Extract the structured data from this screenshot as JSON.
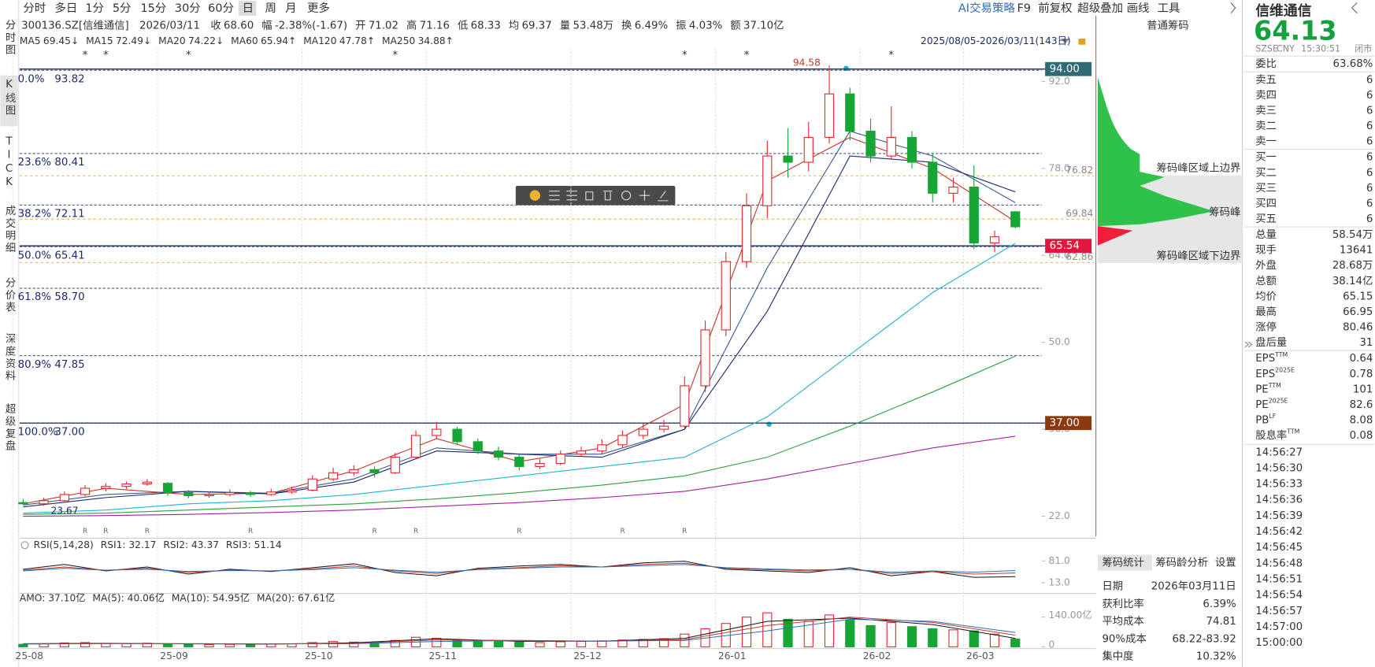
{
  "toolbar": {
    "periods": [
      "分时",
      "多日",
      "1分",
      "5分",
      "15分",
      "30分",
      "60分",
      "日",
      "周",
      "月",
      "更多"
    ],
    "active": 7,
    "right": [
      "AI交易策略",
      "F9",
      "前复权",
      "超级叠加",
      "画线",
      "工具"
    ]
  },
  "side_nav": [
    "分时图",
    "K线图",
    "TICK",
    "成交明细",
    "分价表",
    "深度资料",
    "超级复盘"
  ],
  "quote_line": {
    "code": "300136.SZ[信维通信]",
    "date": "2026/03/11",
    "items": [
      {
        "label": "收",
        "value": "68.60",
        "color": "#17a535"
      },
      {
        "label": "幅",
        "value": "-2.38%(-1.67)",
        "color": "#17a535"
      },
      {
        "label": "开",
        "value": "71.02",
        "color": "#e8262f"
      },
      {
        "label": "高",
        "value": "71.16",
        "color": "#e8262f"
      },
      {
        "label": "低",
        "value": "68.33",
        "color": "#17a535"
      },
      {
        "label": "均",
        "value": "69.37",
        "color": "#17a535"
      },
      {
        "label": "量",
        "value": "53.48万",
        "color": "#333333"
      },
      {
        "label": "换",
        "value": "6.49%",
        "color": "#333333"
      },
      {
        "label": "振",
        "value": "4.03%",
        "color": "#333333"
      },
      {
        "label": "额",
        "value": "37.10亿",
        "color": "#333333"
      }
    ]
  },
  "chip_panel": {
    "title": "普通筹码",
    "labels": [
      "筹码峰区域上边界",
      "筹码峰",
      "筹码峰区域下边界"
    ]
  },
  "chart_data": [
    {
      "type": "candlestick",
      "date_range": "2025/08/05-2026/03/11(143日)",
      "categories": [
        "25-08",
        null,
        null,
        null,
        null,
        null,
        null,
        "25-09",
        null,
        null,
        null,
        null,
        null,
        null,
        "25-10",
        null,
        null,
        null,
        null,
        null,
        "25-11",
        null,
        null,
        null,
        null,
        null,
        null,
        "25-12",
        null,
        null,
        null,
        null,
        null,
        null,
        "26-01",
        null,
        null,
        null,
        null,
        null,
        null,
        "26-02",
        null,
        null,
        null,
        null,
        "26-03",
        null,
        null
      ],
      "values": [
        [
          24.2,
          24.8,
          23.8,
          24.0
        ],
        [
          24.0,
          25.0,
          23.67,
          24.5
        ],
        [
          24.5,
          26.0,
          24.2,
          25.5
        ],
        [
          25.5,
          27.0,
          25.2,
          26.5
        ],
        [
          26.5,
          27.3,
          26.0,
          26.8
        ],
        [
          26.8,
          27.6,
          26.4,
          27.2
        ],
        [
          27.2,
          28.0,
          26.9,
          27.5
        ],
        [
          27.3,
          27.5,
          25.3,
          25.8
        ],
        [
          25.8,
          26.2,
          24.9,
          25.3
        ],
        [
          25.3,
          26.0,
          25.0,
          25.5
        ],
        [
          25.5,
          26.3,
          25.2,
          25.8
        ],
        [
          25.8,
          26.1,
          25.1,
          25.5
        ],
        [
          25.5,
          26.4,
          25.3,
          25.9
        ],
        [
          25.9,
          26.8,
          25.6,
          26.2
        ],
        [
          26.2,
          28.6,
          26.0,
          28.0
        ],
        [
          28.0,
          29.8,
          27.6,
          29.0
        ],
        [
          29.0,
          30.2,
          28.5,
          29.5
        ],
        [
          29.5,
          30.0,
          28.3,
          29.0
        ],
        [
          29.0,
          32.2,
          28.8,
          31.5
        ],
        [
          31.5,
          35.8,
          31.2,
          35.0
        ],
        [
          35.0,
          37.2,
          34.5,
          36.0
        ],
        [
          36.0,
          36.4,
          33.6,
          34.0
        ],
        [
          34.0,
          34.5,
          32.0,
          32.5
        ],
        [
          32.5,
          33.2,
          31.0,
          31.5
        ],
        [
          31.5,
          31.9,
          29.4,
          30.0
        ],
        [
          30.0,
          31.2,
          29.6,
          30.5
        ],
        [
          30.5,
          32.6,
          30.2,
          32.0
        ],
        [
          32.0,
          33.2,
          31.6,
          32.5
        ],
        [
          32.5,
          34.4,
          32.0,
          33.5
        ],
        [
          33.5,
          35.8,
          33.1,
          35.0
        ],
        [
          35.0,
          36.9,
          34.4,
          36.0
        ],
        [
          36.0,
          37.5,
          35.5,
          36.5
        ],
        [
          36.5,
          44.5,
          36.2,
          43.0
        ],
        [
          43.0,
          53.5,
          42.0,
          52.0
        ],
        [
          52.0,
          64.5,
          51.0,
          63.0
        ],
        [
          63.0,
          74.0,
          62.0,
          72.0
        ],
        [
          72.0,
          82.5,
          70.0,
          80.0
        ],
        [
          80.0,
          84.5,
          76.5,
          79.0
        ],
        [
          79.0,
          85.5,
          77.5,
          83.0
        ],
        [
          83.0,
          94.58,
          82.0,
          90.0
        ],
        [
          90.0,
          91.0,
          82.5,
          84.0
        ],
        [
          84.0,
          86.0,
          79.0,
          80.0
        ],
        [
          80.0,
          88.0,
          79.5,
          83.0
        ],
        [
          83.0,
          84.0,
          78.0,
          79.0
        ],
        [
          79.0,
          80.5,
          72.5,
          74.0
        ],
        [
          74.0,
          76.5,
          72.5,
          75.0
        ],
        [
          75.0,
          78.5,
          65.0,
          66.0
        ],
        [
          66.0,
          68.0,
          64.5,
          67.0
        ],
        [
          71.02,
          71.16,
          68.33,
          68.6
        ]
      ],
      "colors": {
        "up": "#e8262f",
        "down": "#17a535"
      },
      "ylim": [
        18.75,
        97.36
      ],
      "yticks": [
        {
          "value": 92,
          "label": "92.0"
        },
        {
          "value": 78,
          "label": "78.0"
        },
        {
          "value": 64,
          "label": "64.0"
        },
        {
          "value": 50,
          "label": "50.0"
        },
        {
          "value": 36,
          "label": "36.0"
        },
        {
          "value": 22,
          "label": "22.0"
        }
      ],
      "moving_averages": [
        {
          "name": "MA5",
          "label": "69.45↓",
          "color": "#c0392b",
          "values": [
            24,
            26.5,
            25.5,
            25.7,
            29.3,
            34.5,
            30.8,
            33,
            40,
            76,
            83,
            78,
            69.45
          ]
        },
        {
          "name": "MA15",
          "label": "72.49↓",
          "color": "#3a5b8c",
          "values": [
            23.8,
            25.5,
            26,
            25.7,
            28,
            33,
            32,
            32,
            36,
            62,
            84,
            80,
            72.49
          ]
        },
        {
          "name": "MA20",
          "label": "74.22↓",
          "color": "#1c2a6b",
          "values": [
            23.5,
            25,
            26,
            25.6,
            27.5,
            32.5,
            32,
            31.5,
            36,
            55,
            80,
            79,
            74.22
          ]
        },
        {
          "name": "MA60",
          "label": "65.94↑",
          "color": "#1fb3d1",
          "values": [
            22.5,
            23,
            24,
            24.5,
            25.5,
            27,
            28.5,
            30,
            31.5,
            38,
            48,
            58,
            65.94
          ]
        },
        {
          "name": "MA120",
          "label": "47.78↑",
          "color": "#2e9e3f",
          "values": [
            22.3,
            22.5,
            23,
            23.5,
            24,
            24.8,
            25.8,
            27,
            28.5,
            31.5,
            36.5,
            42,
            47.78
          ]
        },
        {
          "name": "MA250",
          "label": "34.88↑",
          "color": "#a020a0",
          "values": [
            22.0,
            22.1,
            22.3,
            22.6,
            23.0,
            23.6,
            24.2,
            25,
            26,
            28,
            30.5,
            33,
            34.88
          ]
        }
      ],
      "fib_levels": [
        {
          "pct": "0.0%",
          "price": 93.82
        },
        {
          "pct": "23.6%",
          "price": 80.41
        },
        {
          "pct": "38.2%",
          "price": 72.11
        },
        {
          "pct": "50.0%",
          "price": 65.41
        },
        {
          "pct": "61.8%",
          "price": {
            "value": 58.7,
            "label": "58.70"
          }
        },
        {
          "pct": "80.9%",
          "price": 47.85
        },
        {
          "pct": "100.0%",
          "price": {
            "value": 37,
            "label": "37.00"
          }
        }
      ],
      "price_tags": [
        {
          "value": 94,
          "label": "94.00",
          "color": "#2e6b73"
        },
        {
          "value": 65.54,
          "label": "65.54",
          "color": "#e0173c"
        },
        {
          "value": 37,
          "label": "37.00",
          "color": "#8b3a0f"
        }
      ],
      "chip_levels": [
        76.82,
        69.84,
        62.86
      ],
      "top_marks": [
        null,
        null,
        null,
        "*",
        "*",
        null,
        null,
        null,
        "*",
        null,
        null,
        null,
        null,
        null,
        null,
        null,
        null,
        null,
        "*",
        null,
        null,
        null,
        null,
        null,
        null,
        null,
        null,
        null,
        null,
        null,
        null,
        null,
        "*",
        null,
        null,
        "*",
        null,
        null,
        null,
        null,
        null,
        null,
        "*",
        null,
        null,
        null,
        null,
        null,
        null
      ],
      "bottom_marks": [
        null,
        null,
        null,
        "R",
        "R",
        null,
        "R",
        null,
        null,
        null,
        null,
        "R",
        null,
        null,
        null,
        null,
        null,
        "R",
        null,
        "R",
        null,
        null,
        null,
        null,
        "R",
        null,
        null,
        null,
        null,
        "R",
        null,
        null,
        "R",
        null,
        null,
        null,
        null,
        null,
        null,
        null,
        null,
        null,
        null,
        null,
        null,
        null,
        null,
        null,
        null
      ]
    },
    {
      "type": "line",
      "title": "RSI(5,14,28)",
      "ylim": [
        -17,
        108
      ],
      "yticks": [
        {
          "value": 81,
          "label": "81.0"
        },
        {
          "value": 13,
          "label": "13.0"
        }
      ],
      "series": [
        {
          "name": "RSI1: 32.17",
          "color": "#111111",
          "values": [
            55,
            70,
            50,
            62,
            40,
            55,
            48,
            60,
            72,
            45,
            35,
            58,
            65,
            70,
            62,
            75,
            80,
            55,
            50,
            45,
            60,
            35,
            48,
            30,
            32.17
          ]
        },
        {
          "name": "RSI2: 43.37",
          "color": "#c0392b",
          "values": [
            52,
            62,
            52,
            58,
            45,
            52,
            50,
            56,
            65,
            50,
            42,
            55,
            60,
            66,
            62,
            70,
            74,
            58,
            54,
            50,
            55,
            42,
            48,
            40,
            43.37
          ]
        },
        {
          "name": "RSI3: 51.14",
          "color": "#2f6db5",
          "values": [
            50,
            58,
            52,
            55,
            48,
            51,
            50,
            54,
            60,
            52,
            46,
            54,
            58,
            62,
            62,
            66,
            70,
            60,
            56,
            53,
            55,
            46,
            50,
            46,
            51.14
          ]
        }
      ]
    },
    {
      "type": "bar",
      "title": "AMO: 37.10亿",
      "ylim": [
        0,
        198
      ],
      "yticks": [
        0,
        {
          "value": 140,
          "label": "140.00亿"
        }
      ],
      "values": [
        12,
        14,
        18,
        20,
        16,
        15,
        17,
        14,
        12,
        11,
        12,
        11,
        13,
        14,
        20,
        25,
        22,
        18,
        30,
        45,
        40,
        32,
        28,
        25,
        22,
        20,
        24,
        26,
        28,
        32,
        35,
        38,
        60,
        85,
        110,
        140,
        160,
        130,
        120,
        150,
        125,
        100,
        115,
        95,
        85,
        80,
        75,
        60,
        37.1
      ],
      "series": [
        {
          "name": "MA(5): 40.06亿",
          "color": "#111111",
          "values": [
            15,
            17,
            14,
            13,
            19,
            38,
            26,
            27,
            40,
            120,
            135,
            105,
            40.06
          ]
        },
        {
          "name": "MA(10): 54.95亿",
          "color": "#c0392b",
          "values": [
            14,
            16,
            15,
            13,
            17,
            32,
            30,
            26,
            34,
            100,
            140,
            115,
            54.95
          ]
        },
        {
          "name": "MA(20): 67.61亿",
          "color": "#2f6db5",
          "values": [
            13,
            15,
            15,
            14,
            15,
            25,
            30,
            27,
            30,
            75,
            130,
            120,
            67.61
          ]
        }
      ]
    }
  ],
  "quote_panel": {
    "name": "信维通信",
    "price": 64.13,
    "meta": [
      "SZSE",
      "CNY",
      "15:30:51",
      "闭市"
    ],
    "groups": [
      [
        {
          "label": "委比",
          "value": "63.68%",
          "color": "#e8262f"
        }
      ],
      [
        {
          "label": "卖五",
          "value": "6",
          "color": "#17a535"
        },
        {
          "label": "卖四",
          "value": "6",
          "color": "#17a535"
        },
        {
          "label": "卖三",
          "value": "6",
          "color": "#17a535"
        },
        {
          "label": "卖二",
          "value": "6",
          "color": "#17a535"
        },
        {
          "label": "卖一",
          "value": "6",
          "color": "#17a535"
        }
      ],
      [
        {
          "label": "买一",
          "value": "6",
          "color": "#17a535"
        },
        {
          "label": "买二",
          "value": "6",
          "color": "#17a535"
        },
        {
          "label": "买三",
          "value": "6",
          "color": "#17a535"
        },
        {
          "label": "买四",
          "value": "6",
          "color": "#17a535"
        },
        {
          "label": "买五",
          "value": "6",
          "color": "#17a535"
        }
      ],
      [
        {
          "label": "总量",
          "value": "58.54万",
          "color": "#333333"
        },
        {
          "label": "现手",
          "value": "13641",
          "color": "#333333"
        },
        {
          "label": "外盘",
          "value": "28.68万",
          "color": "#e8262f"
        },
        {
          "label": "总额",
          "value": "38.14亿",
          "color": "#333333"
        },
        {
          "label": "均价",
          "value": "65.15",
          "color": "#17a535"
        },
        {
          "label": "最高",
          "value": "66.95",
          "color": "#e8262f"
        },
        {
          "label": "涨停",
          "value": "80.46",
          "color": "#e8262f"
        },
        {
          "label": "盘后量",
          "value": "31",
          "color": "#333333"
        }
      ],
      [
        {
          "label": "EPS",
          "sup": "TTM",
          "value": "0.64",
          "color": "#333333"
        },
        {
          "label": "EPS",
          "sup": "2025E",
          "value": "0.78",
          "color": "#333333"
        },
        {
          "label": "PE",
          "sup": "TTM",
          "value": "101",
          "color": "#333333"
        },
        {
          "label": "PE",
          "sup": "2025E",
          "value": "82.6",
          "color": "#333333"
        },
        {
          "label": "PB",
          "sup": "LF",
          "value": "8.08",
          "color": "#333333"
        },
        {
          "label": "股息率",
          "sup": "TTM",
          "value": "0.08",
          "color": "#333333"
        }
      ]
    ],
    "times": [
      "14:56:27",
      "14:56:30",
      "14:56:33",
      "14:56:36",
      "14:56:39",
      "14:56:42",
      "14:56:45",
      "14:56:48",
      "14:56:51",
      "14:56:54",
      "14:56:57",
      "14:57:00",
      "15:00:00"
    ]
  },
  "chip_stats": {
    "tabs": [
      "筹码统计",
      "筹码龄分析",
      "设置"
    ],
    "rows": [
      [
        "日期",
        "2026年03月11日"
      ],
      [
        "获利比率",
        "6.39%"
      ],
      [
        "平均成本",
        "74.81"
      ],
      [
        "90%成本",
        "68.22-83.92"
      ],
      [
        "集中度",
        "10.32%"
      ]
    ]
  }
}
